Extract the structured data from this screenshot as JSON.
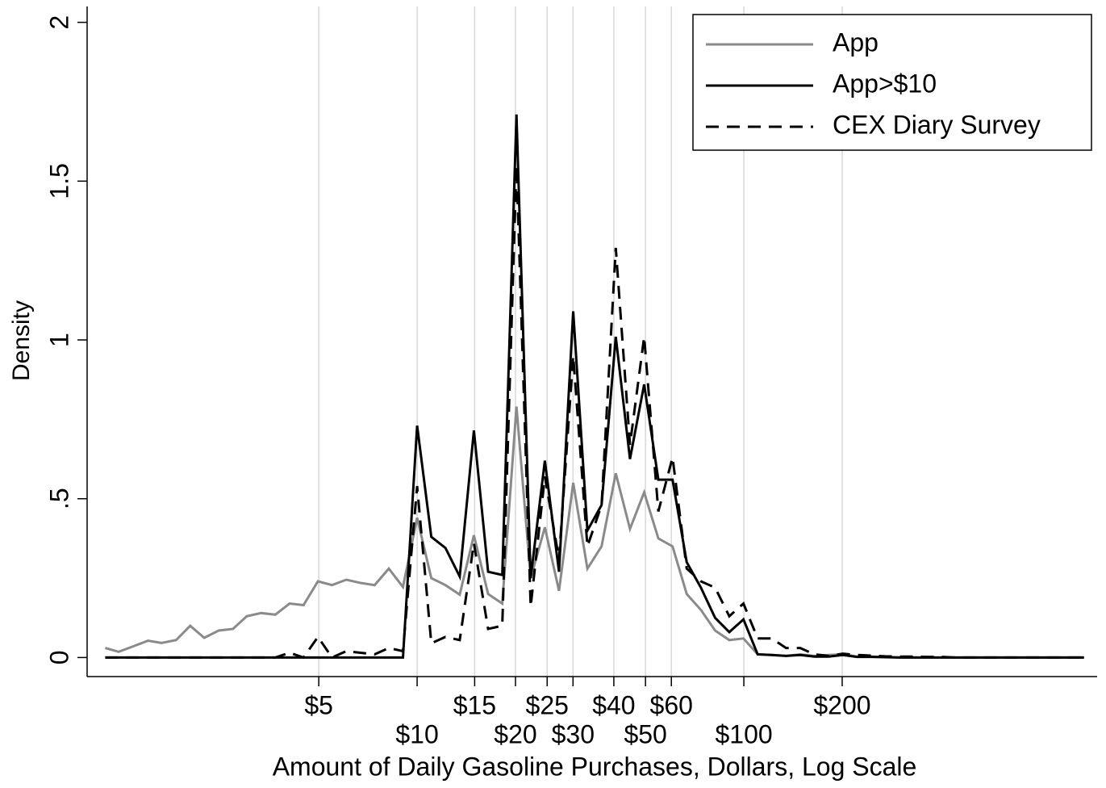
{
  "chart_data": {
    "type": "line",
    "x_label": "Amount of Daily Gasoline Purchases, Dollars, Log Scale",
    "y_label": "Density",
    "x_log": true,
    "grid": true,
    "legend": "top-right",
    "xlim": [
      0.977,
      1206
    ],
    "ylim": [
      -0.06,
      2.05
    ],
    "xticks": [
      {
        "value": 5,
        "label": "$5"
      },
      {
        "value": 10,
        "label": "$10"
      },
      {
        "value": 15,
        "label": "$15"
      },
      {
        "value": 20,
        "label": "$20"
      },
      {
        "value": 25,
        "label": "$25"
      },
      {
        "value": 30,
        "label": "$30"
      },
      {
        "value": 40,
        "label": "$40"
      },
      {
        "value": 50,
        "label": "$50"
      },
      {
        "value": 60,
        "label": "$60"
      },
      {
        "value": 100,
        "label": "$100"
      },
      {
        "value": 200,
        "label": "$200"
      }
    ],
    "yticks": [
      0,
      {
        "value": 0.5,
        "label": ".5"
      },
      1,
      1.5,
      2
    ],
    "x": [
      1.11,
      1.22,
      1.35,
      1.5,
      1.65,
      1.83,
      2.02,
      2.23,
      2.47,
      2.73,
      3.01,
      3.33,
      3.68,
      4.07,
      4.49,
      4.97,
      5.49,
      6.07,
      6.7,
      7.41,
      8.19,
      9.05,
      10,
      11.05,
      12.21,
      13.5,
      14.92,
      16.49,
      18.22,
      20.14,
      22.26,
      24.6,
      27.18,
      30.04,
      33.2,
      36.69,
      40.55,
      44.82,
      49.53,
      54.74,
      60.5,
      66.86,
      73.89,
      81.66,
      90.25,
      99.74,
      110.23,
      121.82,
      134.64,
      148.8,
      164.45,
      181.74,
      200.86,
      221.98,
      245.33,
      271.13,
      299.64,
      331.15,
      365.98,
      404.48,
      447.03,
      494.03,
      545.98,
      603.4,
      666.86,
      736.77,
      814.51,
      900.17,
      994.83,
      1099.47
    ],
    "series": [
      {
        "name": "App",
        "color": "#8a8a8a",
        "line_style": "solid",
        "values": [
          0.03,
          0.018,
          0.035,
          0.053,
          0.046,
          0.055,
          0.1,
          0.062,
          0.085,
          0.09,
          0.13,
          0.14,
          0.135,
          0.17,
          0.165,
          0.24,
          0.228,
          0.245,
          0.235,
          0.228,
          0.28,
          0.222,
          0.44,
          0.25,
          0.228,
          0.198,
          0.385,
          0.2,
          0.17,
          0.79,
          0.25,
          0.41,
          0.21,
          0.55,
          0.28,
          0.35,
          0.58,
          0.405,
          0.52,
          0.375,
          0.35,
          0.2,
          0.15,
          0.085,
          0.055,
          0.06,
          0.01,
          0.008,
          0.005,
          0.01,
          0.005,
          0.008,
          0.01,
          0.003,
          0.003,
          0.002,
          0,
          0,
          0,
          0,
          0,
          0,
          0,
          0,
          0,
          0,
          0,
          0,
          0,
          0
        ]
      },
      {
        "name": "App>$10",
        "color": "#000000",
        "line_style": "solid",
        "values": [
          0,
          0,
          0,
          0,
          0,
          0,
          0,
          0,
          0,
          0,
          0,
          0,
          0,
          0,
          0,
          0,
          0,
          0,
          0,
          0,
          0,
          0,
          0.73,
          0.38,
          0.345,
          0.255,
          0.715,
          0.27,
          0.26,
          1.71,
          0.25,
          0.62,
          0.27,
          1.09,
          0.4,
          0.48,
          1.01,
          0.625,
          0.86,
          0.56,
          0.56,
          0.3,
          0.22,
          0.125,
          0.08,
          0.12,
          0.01,
          0.008,
          0.005,
          0.008,
          0.003,
          0.003,
          0.008,
          0.002,
          0.002,
          0.001,
          0,
          0,
          0,
          0,
          0,
          0,
          0,
          0,
          0,
          0,
          0,
          0,
          0,
          0
        ]
      },
      {
        "name": "CEX Diary Survey",
        "color": "#000000",
        "line_style": "dashed",
        "values": [
          0,
          0,
          0,
          0,
          0,
          0,
          0,
          0,
          0,
          0,
          0,
          0,
          0,
          0.015,
          0,
          0.065,
          0,
          0.02,
          0.015,
          0.01,
          0.03,
          0.02,
          0.54,
          0.045,
          0.065,
          0.055,
          0.36,
          0.09,
          0.1,
          1.55,
          0.16,
          0.57,
          0.31,
          0.95,
          0.35,
          0.48,
          1.29,
          0.67,
          1.01,
          0.46,
          0.63,
          0.28,
          0.24,
          0.22,
          0.13,
          0.17,
          0.06,
          0.06,
          0.03,
          0.03,
          0.01,
          0.005,
          0.012,
          0.008,
          0.006,
          0.004,
          0.003,
          0.003,
          0.002,
          0.002,
          0,
          0,
          0,
          0,
          0,
          0,
          0,
          0,
          0,
          0
        ]
      }
    ]
  }
}
